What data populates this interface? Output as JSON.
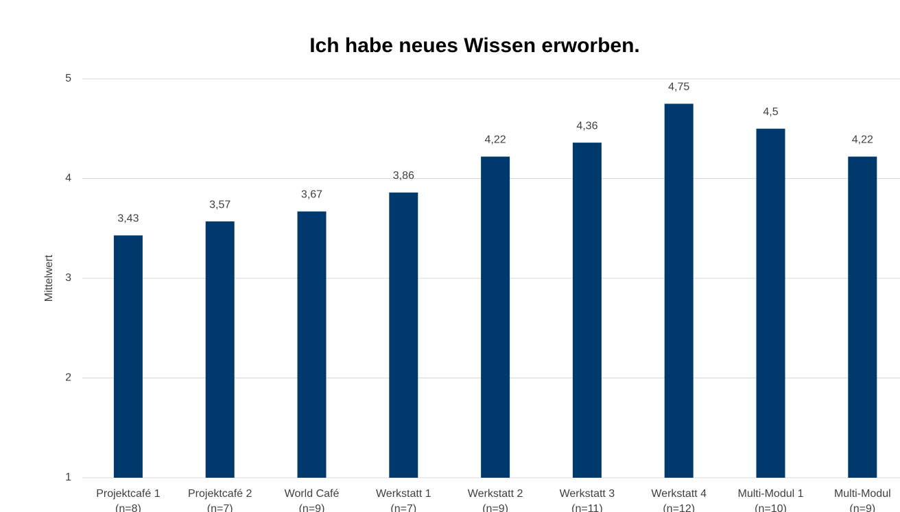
{
  "chart_data": {
    "type": "bar",
    "title": "Ich habe neues Wissen erworben.",
    "y_label": "Mittelwert",
    "categories": [
      "Projektcafé 1\n(n=8)",
      "Projektcafé 2\n(n=7)",
      "World Café\n(n=9)",
      "Werkstatt 1\n(n=7)",
      "Werkstatt 2\n(n=9)",
      "Werkstatt 3\n(n=11)",
      "Werkstatt 4\n(n=12)",
      "Multi-Modul 1\n(n=10)",
      "Multi-Modul\n(n=9)"
    ],
    "values": [
      3.43,
      3.57,
      3.67,
      3.86,
      4.22,
      4.36,
      4.75,
      4.5,
      4.22
    ],
    "value_labels": [
      "3,43",
      "3,57",
      "3,67",
      "3,86",
      "4,22",
      "4,36",
      "4,75",
      "4,5",
      "4,22"
    ],
    "color": "#003a6d",
    "ylim": [
      1,
      5
    ],
    "yticks": [
      1,
      2,
      3,
      4,
      5
    ],
    "grid": true
  }
}
